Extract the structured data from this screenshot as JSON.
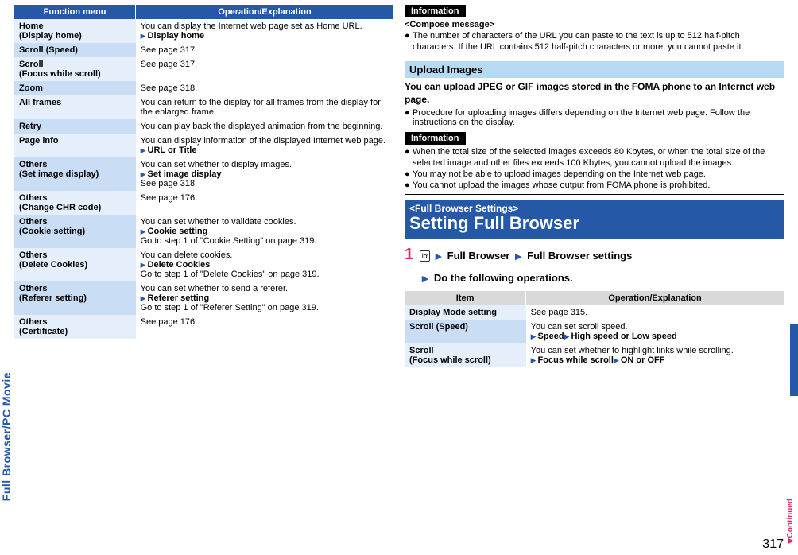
{
  "left": {
    "header": {
      "c1": "Function menu",
      "c2": "Operation/Explanation"
    },
    "rows": [
      {
        "label": "Home\n(Display home)",
        "body": [
          {
            "t": "You can display the Internet web page set as Home URL."
          },
          {
            "tri": true,
            "b": "Display home"
          }
        ]
      },
      {
        "label": "Scroll (Speed)",
        "body": [
          {
            "t": "See page 317."
          }
        ]
      },
      {
        "label": "Scroll\n(Focus while scroll)",
        "body": [
          {
            "t": "See page 317."
          }
        ]
      },
      {
        "label": "Zoom",
        "body": [
          {
            "t": "See page 318."
          }
        ]
      },
      {
        "label": "All frames",
        "body": [
          {
            "t": "You can return to the display for all frames from the display for the enlarged frame."
          }
        ]
      },
      {
        "label": "Retry",
        "body": [
          {
            "t": "You can play back the displayed animation from the beginning."
          }
        ]
      },
      {
        "label": "Page info",
        "body": [
          {
            "t": "You can display information of the displayed Internet web page."
          },
          {
            "tri": true,
            "b": "URL or Title"
          }
        ]
      },
      {
        "label": "Others\n(Set image display)",
        "body": [
          {
            "t": "You can set whether to display images."
          },
          {
            "tri": true,
            "b": "Set image display"
          },
          {
            "t": "See page 318."
          }
        ]
      },
      {
        "label": "Others\n(Change CHR code)",
        "body": [
          {
            "t": "See page 176."
          }
        ]
      },
      {
        "label": "Others\n(Cookie setting)",
        "body": [
          {
            "t": "You can set whether to validate cookies."
          },
          {
            "tri": true,
            "b": "Cookie setting"
          },
          {
            "t": "Go to step 1 of \"Cookie Setting\" on page 319."
          }
        ]
      },
      {
        "label": "Others\n(Delete Cookies)",
        "body": [
          {
            "t": "You can delete cookies."
          },
          {
            "tri": true,
            "b": "Delete Cookies"
          },
          {
            "t": "Go to step 1 of \"Delete Cookies\" on page 319."
          }
        ]
      },
      {
        "label": "Others\n(Referer setting)",
        "body": [
          {
            "t": "You can set whether to send a referer."
          },
          {
            "tri": true,
            "b": "Referer setting"
          },
          {
            "t": "Go to step 1 of \"Referer Setting\" on page 319."
          }
        ]
      },
      {
        "label": "Others\n(Certificate)",
        "body": [
          {
            "t": "See page 176."
          }
        ]
      }
    ]
  },
  "right": {
    "info1": {
      "tab": "Information",
      "heading": "<Compose message>",
      "bullets": [
        "The number of characters of the URL you can paste to the text is up to 512 half-pitch characters. If the URL contains 512 half-pitch characters or more, you cannot paste it."
      ]
    },
    "upload": {
      "title": "Upload Images",
      "lead": "You can upload JPEG or GIF images stored in the FOMA phone to an Internet web page.",
      "bullet": "Procedure for uploading images differs depending on the Internet web page. Follow the instructions on the display."
    },
    "info2": {
      "tab": "Information",
      "bullets": [
        "When the total size of the selected images exceeds 80 Kbytes, or when the total size of the selected image and other files exceeds 100 Kbytes, you cannot upload the images.",
        "You may not be able to upload images depending on the Internet web page.",
        "You cannot upload the images whose output from FOMA phone is prohibited."
      ]
    },
    "setting": {
      "small": "<Full Browser Settings>",
      "big": "Setting Full Browser",
      "step": {
        "num": "1",
        "icon": "iα",
        "pieces": [
          "Full Browser",
          "Full Browser settings",
          "Do the following operations."
        ]
      }
    },
    "items": {
      "header": {
        "c1": "Item",
        "c2": "Operation/Explanation"
      },
      "rows": [
        {
          "label": "Display Mode setting",
          "body": [
            {
              "t": "See page 315."
            }
          ]
        },
        {
          "label": "Scroll (Speed)",
          "body": [
            {
              "t": "You can set scroll speed."
            },
            {
              "tri": true,
              "b": "Speed",
              "tri2": true,
              "b2": "High speed or Low speed"
            }
          ]
        },
        {
          "label": "Scroll\n(Focus while scroll)",
          "body": [
            {
              "t": "You can set whether to highlight links while scrolling."
            },
            {
              "tri": true,
              "b": "Focus while scroll",
              "tri2": true,
              "b2": "ON or OFF"
            }
          ]
        }
      ]
    }
  },
  "side": {
    "label": "Full Browser/PC Movie",
    "continued": "Continued",
    "pagenum": "317"
  },
  "colors": {
    "brand": "#2558a6",
    "pink": "#db2f74",
    "lightblue": "#b6daf2",
    "row_even": "#e4effb",
    "row_odd": "#c9def5"
  }
}
